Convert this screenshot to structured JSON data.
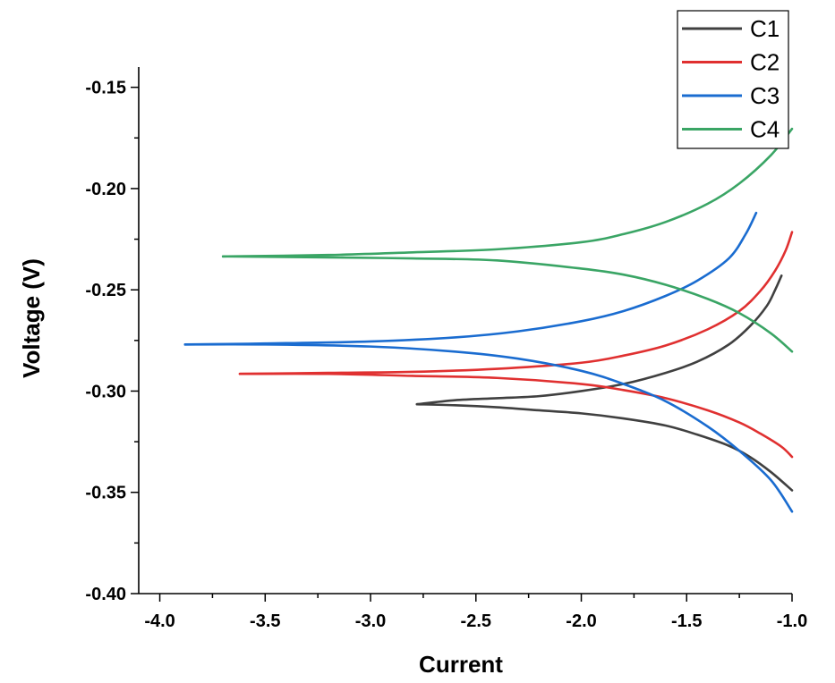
{
  "chart_data": {
    "type": "line",
    "title": "",
    "xlabel": "Current",
    "ylabel": "Voltage (V)",
    "xlim": [
      -4.1,
      -1.0
    ],
    "ylim": [
      -0.4,
      -0.14
    ],
    "xticks": [
      -4.0,
      -3.5,
      -3.0,
      -2.5,
      -2.0,
      -1.5,
      -1.0
    ],
    "xtick_labels": [
      "-4.0",
      "-3.5",
      "-3.0",
      "-2.5",
      "-2.0",
      "-1.5",
      "-1.0"
    ],
    "yticks": [
      -0.15,
      -0.2,
      -0.25,
      -0.3,
      -0.35,
      -0.4
    ],
    "ytick_labels": [
      "-0.15",
      "-0.20",
      "-0.25",
      "-0.30",
      "-0.35",
      "-0.40"
    ],
    "grid": false,
    "legend_position": "top-right",
    "series": [
      {
        "name": "C1",
        "color": "#404040",
        "branches": [
          {
            "x": [
              -2.78,
              -2.6,
              -2.4,
              -2.2,
              -2.0,
              -1.8,
              -1.6,
              -1.45,
              -1.3,
              -1.2,
              -1.12,
              -1.08,
              -1.05
            ],
            "y": [
              -0.3065,
              -0.3045,
              -0.3035,
              -0.3025,
              -0.3,
              -0.2965,
              -0.291,
              -0.2855,
              -0.277,
              -0.268,
              -0.258,
              -0.25,
              -0.243
            ]
          },
          {
            "x": [
              -2.78,
              -2.6,
              -2.4,
              -2.2,
              -2.0,
              -1.8,
              -1.6,
              -1.45,
              -1.3,
              -1.2,
              -1.1,
              -1.0
            ],
            "y": [
              -0.3065,
              -0.307,
              -0.308,
              -0.3095,
              -0.311,
              -0.3135,
              -0.317,
              -0.3215,
              -0.327,
              -0.3325,
              -0.34,
              -0.349
            ]
          }
        ]
      },
      {
        "name": "C2",
        "color": "#e03030",
        "branches": [
          {
            "x": [
              -3.62,
              -3.2,
              -2.8,
              -2.4,
              -2.0,
              -1.8,
              -1.6,
              -1.4,
              -1.25,
              -1.15,
              -1.08,
              -1.03,
              -1.0
            ],
            "y": [
              -0.2915,
              -0.291,
              -0.2905,
              -0.289,
              -0.286,
              -0.2825,
              -0.2775,
              -0.2695,
              -0.2605,
              -0.2505,
              -0.2405,
              -0.2305,
              -0.2215
            ]
          },
          {
            "x": [
              -3.62,
              -3.2,
              -2.8,
              -2.4,
              -2.0,
              -1.8,
              -1.6,
              -1.4,
              -1.25,
              -1.15,
              -1.05,
              -1.0
            ],
            "y": [
              -0.2915,
              -0.2915,
              -0.2925,
              -0.2935,
              -0.2965,
              -0.2995,
              -0.3035,
              -0.3095,
              -0.3155,
              -0.321,
              -0.3275,
              -0.3325
            ]
          }
        ]
      },
      {
        "name": "C3",
        "color": "#1a6cd0",
        "branches": [
          {
            "x": [
              -3.88,
              -3.5,
              -3.0,
              -2.6,
              -2.3,
              -2.0,
              -1.8,
              -1.6,
              -1.45,
              -1.3,
              -1.22,
              -1.17
            ],
            "y": [
              -0.277,
              -0.2765,
              -0.2755,
              -0.2735,
              -0.2705,
              -0.2655,
              -0.2605,
              -0.253,
              -0.2455,
              -0.2345,
              -0.2225,
              -0.212
            ]
          },
          {
            "x": [
              -3.88,
              -3.5,
              -3.0,
              -2.6,
              -2.3,
              -2.0,
              -1.8,
              -1.6,
              -1.4,
              -1.25,
              -1.1,
              -1.0
            ],
            "y": [
              -0.277,
              -0.277,
              -0.278,
              -0.2805,
              -0.284,
              -0.29,
              -0.2965,
              -0.305,
              -0.3175,
              -0.3295,
              -0.344,
              -0.3595
            ]
          }
        ]
      },
      {
        "name": "C4",
        "color": "#3aa565",
        "branches": [
          {
            "x": [
              -3.7,
              -3.2,
              -2.8,
              -2.4,
              -2.0,
              -1.8,
              -1.6,
              -1.4,
              -1.25,
              -1.1,
              -1.0
            ],
            "y": [
              -0.2335,
              -0.2328,
              -0.2315,
              -0.23,
              -0.2265,
              -0.2225,
              -0.2165,
              -0.2075,
              -0.1975,
              -0.1835,
              -0.1705
            ]
          },
          {
            "x": [
              -3.7,
              -3.2,
              -2.8,
              -2.4,
              -2.0,
              -1.8,
              -1.6,
              -1.4,
              -1.25,
              -1.1,
              -1.0
            ],
            "y": [
              -0.2335,
              -0.234,
              -0.2345,
              -0.2355,
              -0.2395,
              -0.2425,
              -0.2475,
              -0.2545,
              -0.2615,
              -0.2715,
              -0.2805
            ]
          }
        ]
      }
    ]
  }
}
